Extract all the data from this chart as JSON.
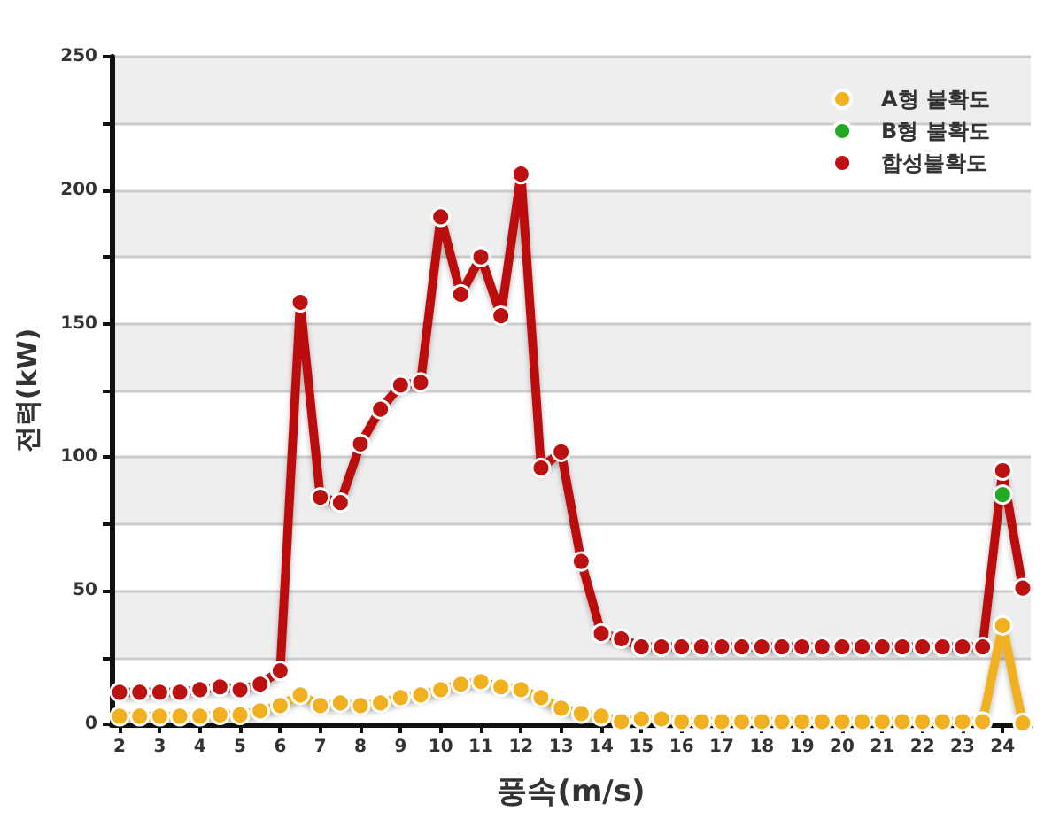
{
  "chart_data": {
    "type": "line",
    "xlabel": "풍속(m/s)",
    "ylabel": "전력(kW)",
    "x": [
      2,
      2.5,
      3,
      3.5,
      4,
      4.5,
      5,
      5.5,
      6,
      6.5,
      7,
      7.5,
      8,
      8.5,
      9,
      9.5,
      10,
      10.5,
      11,
      11.5,
      12,
      12.5,
      13,
      13.5,
      14,
      14.5,
      15,
      15.5,
      16,
      16.5,
      17,
      17.5,
      18,
      18.5,
      19,
      19.5,
      20,
      20.5,
      21,
      21.5,
      22,
      22.5,
      23,
      23.5,
      24,
      24.5
    ],
    "series": [
      {
        "name": "A형 불확도",
        "color": "#f0b020",
        "values": [
          3,
          3,
          3,
          3,
          3,
          3.5,
          3.5,
          5,
          7,
          11,
          7,
          8,
          7,
          8,
          10,
          11,
          13,
          15,
          16,
          14,
          13,
          10,
          6,
          4,
          3,
          1,
          2,
          2,
          1,
          1,
          1,
          1,
          1,
          1,
          1,
          1,
          1,
          1,
          1,
          1,
          1,
          1,
          1,
          1,
          37,
          0.5
        ]
      },
      {
        "name": "B형 불확도",
        "color": "#22aa22",
        "values": [
          null,
          null,
          null,
          null,
          null,
          null,
          null,
          null,
          null,
          null,
          null,
          null,
          null,
          null,
          null,
          null,
          null,
          null,
          null,
          null,
          null,
          null,
          null,
          null,
          null,
          null,
          null,
          null,
          null,
          null,
          null,
          null,
          null,
          null,
          null,
          null,
          null,
          null,
          null,
          null,
          null,
          null,
          null,
          null,
          86,
          null
        ]
      },
      {
        "name": "합성불확도",
        "color": "#bb1111",
        "values": [
          12,
          12,
          12,
          12,
          13,
          14,
          13,
          15,
          20,
          158,
          85,
          83,
          105,
          118,
          127,
          128,
          190,
          161,
          175,
          153,
          206,
          96,
          102,
          61,
          34,
          32,
          29,
          29,
          29,
          29,
          29,
          29,
          29,
          29,
          29,
          29,
          29,
          29,
          29,
          29,
          29,
          29,
          29,
          29,
          95,
          51
        ]
      }
    ],
    "xlim": [
      1.8,
      24.7
    ],
    "xticks": [
      2,
      3,
      4,
      5,
      6,
      7,
      8,
      9,
      10,
      11,
      12,
      13,
      14,
      15,
      16,
      17,
      18,
      19,
      20,
      21,
      22,
      23,
      24
    ],
    "ylim": [
      0,
      250
    ],
    "yticks": [
      0,
      {
        "value": 25,
        "label": null
      },
      50,
      {
        "value": 75,
        "label": null
      },
      100,
      {
        "value": 125,
        "label": null
      },
      150,
      {
        "value": 175,
        "label": null
      },
      200,
      {
        "value": 225,
        "label": null
      },
      250
    ],
    "grid": "y",
    "legend": "top right",
    "marker": "circle",
    "line_style": "solid"
  }
}
